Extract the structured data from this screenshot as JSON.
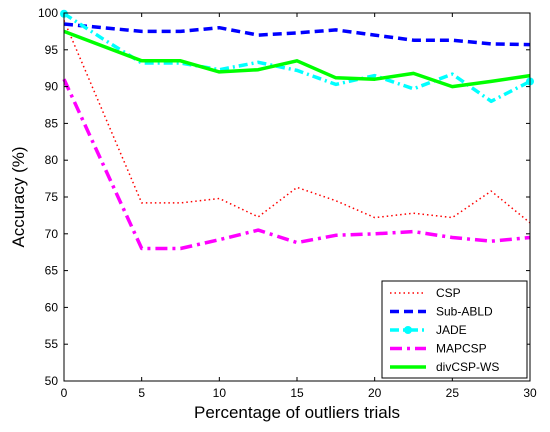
{
  "chart_data": {
    "type": "line",
    "xlabel": "Percentage of outliers trials",
    "ylabel": "Accuracy (%)",
    "xlim": [
      0,
      30
    ],
    "ylim": [
      50,
      100
    ],
    "xticks": [
      0,
      5,
      10,
      15,
      20,
      25,
      30
    ],
    "yticks": [
      50,
      55,
      60,
      65,
      70,
      75,
      80,
      85,
      90,
      95,
      100
    ],
    "grid": false,
    "legend_position": "bottom-right",
    "series": [
      {
        "name": "CSP",
        "color": "#ff0000",
        "style": "dotted",
        "x": [
          0,
          5,
          7.5,
          10,
          12.5,
          15,
          17.5,
          20,
          22.5,
          25,
          27.5,
          30
        ],
        "y": [
          99,
          74.2,
          74.2,
          74.8,
          72.3,
          76.3,
          74.5,
          72.2,
          72.8,
          72.2,
          75.8,
          71.5
        ]
      },
      {
        "name": "Sub-ABLD",
        "color": "#0000ff",
        "style": "dashed",
        "x": [
          0,
          2.5,
          5,
          7.5,
          10,
          12.5,
          15,
          17.5,
          20,
          22.5,
          25,
          27.5,
          30
        ],
        "y": [
          98.5,
          98,
          97.5,
          97.5,
          98,
          97,
          97.3,
          97.7,
          97,
          96.3,
          96.3,
          95.8,
          95.7
        ]
      },
      {
        "name": "JADE",
        "color": "#00ffff",
        "style": "dash-dot-marker",
        "x": [
          0,
          2.5,
          5,
          7.5,
          10,
          12.5,
          15,
          17.5,
          20,
          22.5,
          25,
          27.5,
          30
        ],
        "y": [
          99.9,
          96.5,
          93.2,
          93.2,
          92.3,
          93.3,
          92.2,
          90.3,
          91.5,
          89.7,
          91.7,
          88,
          90.7
        ]
      },
      {
        "name": "MAPCSP",
        "color": "#ff00ff",
        "style": "dash-dot",
        "x": [
          0,
          5,
          7.5,
          10,
          12.5,
          15,
          17.5,
          20,
          22.5,
          25,
          27.5,
          30
        ],
        "y": [
          91,
          68,
          68,
          69.2,
          70.5,
          68.8,
          69.8,
          70,
          70.3,
          69.5,
          69,
          69.5
        ]
      },
      {
        "name": "divCSP-WS",
        "color": "#00ff00",
        "style": "solid",
        "x": [
          0,
          5,
          7.5,
          10,
          12.5,
          15,
          17.5,
          20,
          22.5,
          25,
          27.5,
          30
        ],
        "y": [
          97.5,
          93.5,
          93.5,
          92,
          92.3,
          93.5,
          91.2,
          91,
          91.8,
          90,
          90.7,
          91.5
        ]
      }
    ]
  }
}
